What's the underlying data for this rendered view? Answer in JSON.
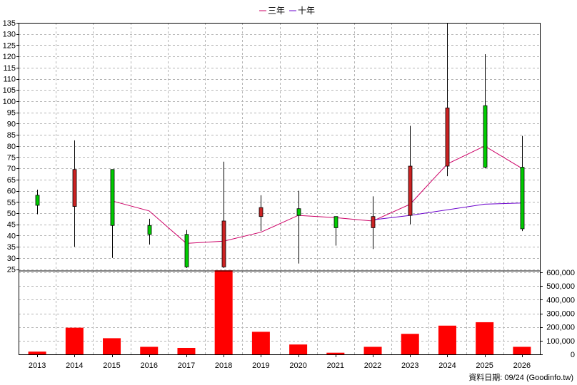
{
  "chart_data": {
    "type": "candlestick",
    "legend": [
      {
        "name": "三年",
        "color": "#cc0066"
      },
      {
        "name": "十年",
        "color": "#6a00cc"
      }
    ],
    "categories": [
      "2013",
      "2014",
      "2015",
      "2016",
      "2017",
      "2018",
      "2019",
      "2020",
      "2021",
      "2022",
      "2023",
      "2024",
      "2025",
      "2026"
    ],
    "price_axis": {
      "min": 25,
      "max": 135,
      "step": 5
    },
    "volume_axis": {
      "min": 0,
      "max": 600000,
      "step": 100000,
      "tick_labels": [
        "0",
        "100,000",
        "200,000",
        "300,000",
        "400,000",
        "500,000",
        "600,000"
      ]
    },
    "candles": [
      {
        "year": "2013",
        "open": 53.5,
        "close": 58,
        "high": 60.5,
        "low": 49.5,
        "color": "#00cc00"
      },
      {
        "year": "2014",
        "open": 69.5,
        "close": 53,
        "high": 82.5,
        "low": 35,
        "color": "#cc2222"
      },
      {
        "year": "2015",
        "open": 44.5,
        "close": 69.5,
        "high": 69.5,
        "low": 30,
        "color": "#00cc00"
      },
      {
        "year": "2016",
        "open": 40.5,
        "close": 44.5,
        "high": 47.5,
        "low": 36,
        "color": "#00cc00"
      },
      {
        "year": "2017",
        "open": 26,
        "close": 40.5,
        "high": 42.5,
        "low": 25.5,
        "color": "#00cc00"
      },
      {
        "year": "2018",
        "open": 46.5,
        "close": 26,
        "high": 73,
        "low": 25.5,
        "color": "#cc2222"
      },
      {
        "year": "2019",
        "open": 52.5,
        "close": 48.5,
        "high": 58,
        "low": 42,
        "color": "#cc2222"
      },
      {
        "year": "2020",
        "open": 49,
        "close": 52,
        "high": 60,
        "low": 27.5,
        "color": "#00cc00"
      },
      {
        "year": "2021",
        "open": 43.5,
        "close": 48.5,
        "high": 48.5,
        "low": 35.5,
        "color": "#00cc00"
      },
      {
        "year": "2022",
        "open": 48.5,
        "close": 43.5,
        "high": 57.5,
        "low": 34,
        "color": "#cc2222"
      },
      {
        "year": "2023",
        "open": 71,
        "close": 49,
        "high": 89,
        "low": 45,
        "color": "#cc2222"
      },
      {
        "year": "2024",
        "open": 97,
        "close": 71,
        "high": 135,
        "low": 66.5,
        "color": "#cc2222"
      },
      {
        "year": "2025",
        "open": 70.5,
        "close": 98,
        "high": 121,
        "low": 70,
        "color": "#00cc00"
      },
      {
        "year": "2026",
        "open": 43,
        "close": 70.5,
        "high": 84.5,
        "low": 42,
        "color": "#00cc00"
      }
    ],
    "series": [
      {
        "name": "三年",
        "color": "#cc0066",
        "values": [
          null,
          null,
          55.5,
          51,
          36.5,
          37.5,
          41.5,
          49,
          48,
          46.5,
          54,
          72,
          80,
          70
        ]
      },
      {
        "name": "十年",
        "color": "#6a00cc",
        "values": [
          null,
          null,
          null,
          null,
          null,
          null,
          null,
          null,
          null,
          47,
          49,
          51.5,
          54,
          54.5
        ]
      }
    ],
    "volume": [
      20000,
      195000,
      118000,
      55000,
      47000,
      615000,
      165000,
      72000,
      12000,
      55000,
      150000,
      210000,
      235000,
      55000
    ],
    "volume_color": "#ff0000",
    "grid": true
  },
  "footer": {
    "date_text": "資料日期: 09/24 (Goodinfo.tw)"
  }
}
